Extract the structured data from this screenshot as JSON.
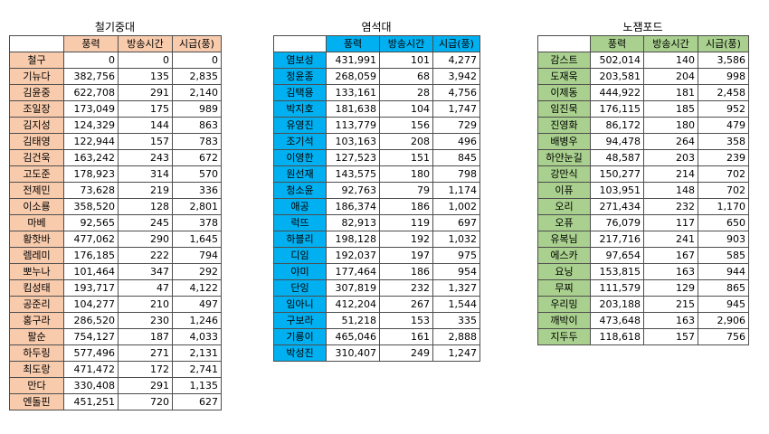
{
  "columns": [
    "풍력",
    "방송시간",
    "시급(풍)"
  ],
  "teams": [
    {
      "title": "철기중대",
      "color": "#F8CBAD",
      "rows": [
        [
          "철구",
          "0",
          "0",
          "0"
        ],
        [
          "기뉴다",
          "382,756",
          "135",
          "2,835"
        ],
        [
          "김윤중",
          "622,708",
          "291",
          "2,140"
        ],
        [
          "조일장",
          "173,049",
          "175",
          "989"
        ],
        [
          "김지성",
          "124,329",
          "144",
          "863"
        ],
        [
          "김태영",
          "122,944",
          "157",
          "783"
        ],
        [
          "김건욱",
          "163,242",
          "243",
          "672"
        ],
        [
          "고도준",
          "178,923",
          "314",
          "570"
        ],
        [
          "전제민",
          "73,628",
          "219",
          "336"
        ],
        [
          "이소룡",
          "358,520",
          "128",
          "2,801"
        ],
        [
          "마베",
          "92,565",
          "245",
          "378"
        ],
        [
          "황핫바",
          "477,062",
          "290",
          "1,645"
        ],
        [
          "렘레미",
          "176,185",
          "222",
          "794"
        ],
        [
          "뽀누나",
          "101,464",
          "347",
          "292"
        ],
        [
          "킴성태",
          "193,717",
          "47",
          "4,122"
        ],
        [
          "공준리",
          "104,277",
          "210",
          "497"
        ],
        [
          "홍구라",
          "286,520",
          "230",
          "1,246"
        ],
        [
          "팔순",
          "754,127",
          "187",
          "4,033"
        ],
        [
          "하두링",
          "577,496",
          "271",
          "2,131"
        ],
        [
          "최도랑",
          "471,472",
          "172",
          "2,741"
        ],
        [
          "만다",
          "330,408",
          "291",
          "1,135"
        ],
        [
          "엔돌핀",
          "451,251",
          "720",
          "627"
        ]
      ]
    },
    {
      "title": "염석대",
      "color": "#00B0F0",
      "rows": [
        [
          "염보성",
          "431,991",
          "101",
          "4,277"
        ],
        [
          "정윤종",
          "268,059",
          "68",
          "3,942"
        ],
        [
          "김택용",
          "133,161",
          "28",
          "4,756"
        ],
        [
          "박지호",
          "181,638",
          "104",
          "1,747"
        ],
        [
          "유영진",
          "113,779",
          "156",
          "729"
        ],
        [
          "조기석",
          "103,163",
          "208",
          "496"
        ],
        [
          "이영한",
          "127,523",
          "151",
          "845"
        ],
        [
          "원선재",
          "143,575",
          "180",
          "798"
        ],
        [
          "청소윤",
          "92,763",
          "79",
          "1,174"
        ],
        [
          "애공",
          "186,374",
          "186",
          "1,002"
        ],
        [
          "럭뜨",
          "82,913",
          "119",
          "697"
        ],
        [
          "하블리",
          "198,128",
          "192",
          "1,032"
        ],
        [
          "디임",
          "192,037",
          "197",
          "975"
        ],
        [
          "야미",
          "177,464",
          "186",
          "954"
        ],
        [
          "단잉",
          "307,819",
          "232",
          "1,327"
        ],
        [
          "임아니",
          "412,204",
          "267",
          "1,544"
        ],
        [
          "구보라",
          "51,218",
          "153",
          "335"
        ],
        [
          "기룡이",
          "465,046",
          "161",
          "2,888"
        ],
        [
          "박성진",
          "310,407",
          "249",
          "1,247"
        ]
      ]
    },
    {
      "title": "노잼포드",
      "color": "#A9D08E",
      "rows": [
        [
          "감스트",
          "502,014",
          "140",
          "3,586"
        ],
        [
          "도재욱",
          "203,581",
          "204",
          "998"
        ],
        [
          "이제동",
          "444,922",
          "181",
          "2,458"
        ],
        [
          "임진묵",
          "176,115",
          "185",
          "952"
        ],
        [
          "진영화",
          "86,172",
          "180",
          "479"
        ],
        [
          "배병우",
          "94,478",
          "264",
          "358"
        ],
        [
          "하얀눈길",
          "48,587",
          "203",
          "239"
        ],
        [
          "강만식",
          "150,277",
          "214",
          "702"
        ],
        [
          "이퓨",
          "103,951",
          "148",
          "702"
        ],
        [
          "오리",
          "271,434",
          "232",
          "1,170"
        ],
        [
          "오퓨",
          "76,079",
          "117",
          "650"
        ],
        [
          "유복님",
          "217,716",
          "241",
          "903"
        ],
        [
          "에스카",
          "97,654",
          "167",
          "585"
        ],
        [
          "요닝",
          "153,815",
          "163",
          "944"
        ],
        [
          "무찌",
          "111,579",
          "129",
          "865"
        ],
        [
          "우리밍",
          "203,188",
          "215",
          "945"
        ],
        [
          "깨박이",
          "473,648",
          "163",
          "2,906"
        ],
        [
          "지두두",
          "118,618",
          "157",
          "756"
        ]
      ]
    }
  ]
}
